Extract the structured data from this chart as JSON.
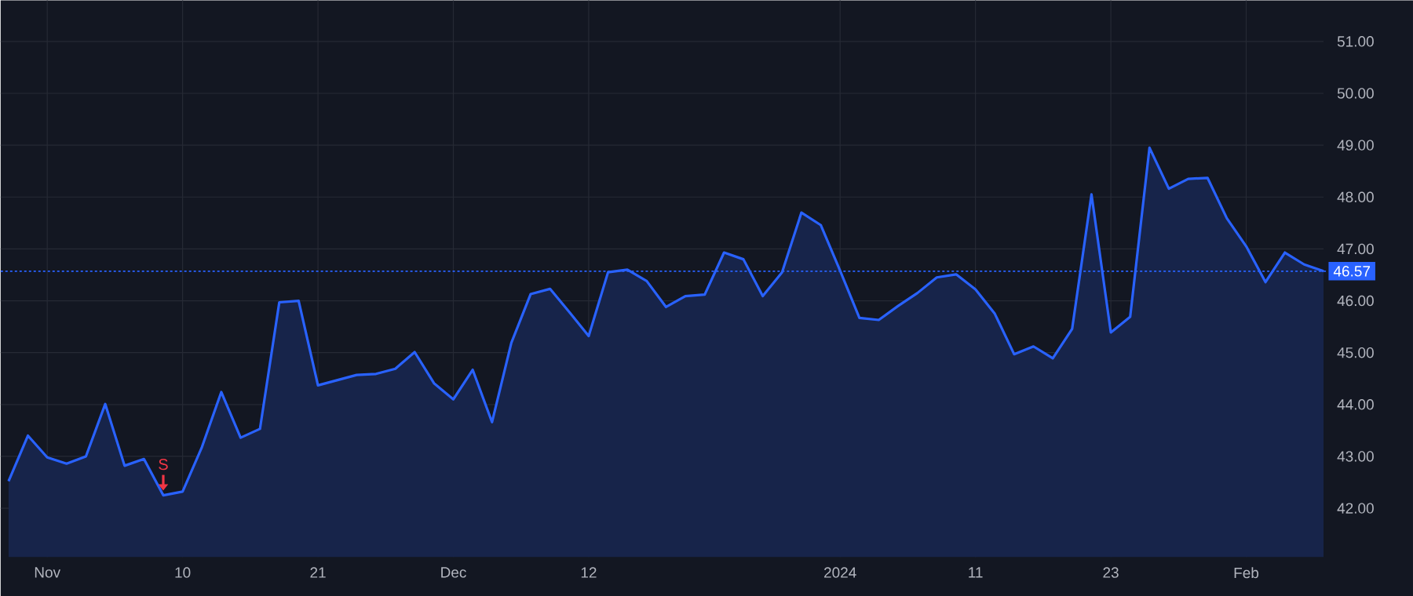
{
  "chart_data": {
    "type": "area",
    "categories": [
      null,
      null,
      "Nov",
      null,
      null,
      null,
      null,
      null,
      null,
      "10",
      null,
      null,
      null,
      null,
      null,
      null,
      "21",
      null,
      null,
      null,
      null,
      null,
      null,
      "Dec",
      null,
      null,
      null,
      null,
      null,
      null,
      "12",
      null,
      null,
      null,
      null,
      null,
      null,
      null,
      null,
      null,
      null,
      null,
      null,
      "2024",
      null,
      null,
      null,
      null,
      null,
      null,
      "11",
      null,
      null,
      null,
      null,
      null,
      null,
      "23",
      null,
      null,
      null,
      null,
      null,
      null,
      "Feb",
      null,
      null,
      null,
      null
    ],
    "series": [
      {
        "color": "#2962ff",
        "values": [
          42.52,
          43.4,
          42.98,
          42.86,
          43.0,
          44.01,
          42.82,
          42.95,
          42.25,
          42.32,
          43.18,
          44.24,
          43.36,
          43.53,
          45.97,
          46.0,
          44.37,
          44.47,
          44.57,
          44.59,
          44.69,
          45.01,
          44.41,
          44.1,
          44.67,
          43.66,
          45.19,
          46.13,
          46.23,
          45.78,
          45.32,
          46.55,
          46.6,
          46.38,
          45.88,
          46.09,
          46.12,
          46.93,
          46.8,
          46.09,
          46.55,
          47.7,
          47.46,
          46.58,
          45.67,
          45.63,
          45.9,
          46.15,
          46.45,
          46.51,
          46.22,
          45.75,
          44.97,
          45.12,
          44.89,
          45.46,
          48.05,
          45.39,
          45.69,
          48.95,
          48.16,
          48.35,
          48.37,
          47.59,
          47.05,
          46.36,
          46.93,
          46.7,
          46.57
        ]
      }
    ],
    "ylim": [
      41.06,
      51.79
    ],
    "yticks": [
      {
        "value": 42,
        "label": "42.00"
      },
      {
        "value": 43,
        "label": "43.00"
      },
      {
        "value": 44,
        "label": "44.00"
      },
      {
        "value": 45,
        "label": "45.00"
      },
      {
        "value": 46,
        "label": "46.00"
      },
      {
        "value": 47,
        "label": "47.00"
      },
      {
        "value": 48,
        "label": "48.00"
      },
      {
        "value": 49,
        "label": "49.00"
      },
      {
        "value": 50,
        "label": "50.00"
      },
      {
        "value": 51,
        "label": "51.00"
      }
    ],
    "grid": true,
    "marker": "none",
    "line_style": "solid",
    "ref_lines": [
      {
        "axis": "y",
        "value": 46.57,
        "label": "46.57",
        "color": "#2962ff",
        "line_style": "dotted"
      }
    ],
    "annotations": [
      {
        "text": "S",
        "y": 42.25
      }
    ]
  }
}
